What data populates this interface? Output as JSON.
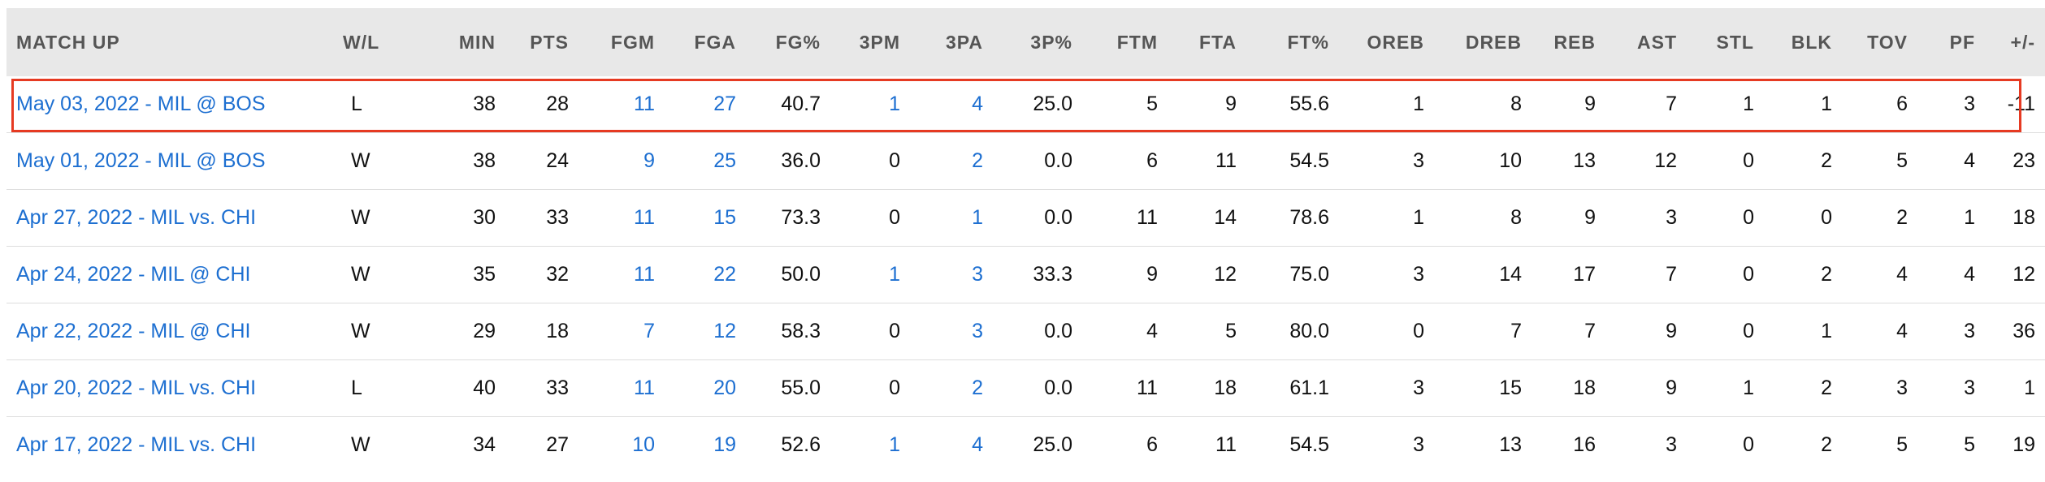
{
  "columns": [
    "MATCH UP",
    "W/L",
    "MIN",
    "PTS",
    "FGM",
    "FGA",
    "FG%",
    "3PM",
    "3PA",
    "3P%",
    "FTM",
    "FTA",
    "FT%",
    "OREB",
    "DREB",
    "REB",
    "AST",
    "STL",
    "BLK",
    "TOV",
    "PF",
    "+/-"
  ],
  "rows": [
    {
      "matchup": "May 03, 2022 - MIL @ BOS",
      "wl": "L",
      "min": "38",
      "pts": "28",
      "fgm": "11",
      "fga": "27",
      "fgpct": "40.7",
      "tpm": "1",
      "tpa": "4",
      "tppct": "25.0",
      "ftm": "5",
      "fta": "9",
      "ftpct": "55.6",
      "oreb": "1",
      "dreb": "8",
      "reb": "9",
      "ast": "7",
      "stl": "1",
      "blk": "1",
      "tov": "6",
      "pf": "3",
      "pm": "-11"
    },
    {
      "matchup": "May 01, 2022 - MIL @ BOS",
      "wl": "W",
      "min": "38",
      "pts": "24",
      "fgm": "9",
      "fga": "25",
      "fgpct": "36.0",
      "tpm": "0",
      "tpa": "2",
      "tppct": "0.0",
      "ftm": "6",
      "fta": "11",
      "ftpct": "54.5",
      "oreb": "3",
      "dreb": "10",
      "reb": "13",
      "ast": "12",
      "stl": "0",
      "blk": "2",
      "tov": "5",
      "pf": "4",
      "pm": "23"
    },
    {
      "matchup": "Apr 27, 2022 - MIL vs. CHI",
      "wl": "W",
      "min": "30",
      "pts": "33",
      "fgm": "11",
      "fga": "15",
      "fgpct": "73.3",
      "tpm": "0",
      "tpa": "1",
      "tppct": "0.0",
      "ftm": "11",
      "fta": "14",
      "ftpct": "78.6",
      "oreb": "1",
      "dreb": "8",
      "reb": "9",
      "ast": "3",
      "stl": "0",
      "blk": "0",
      "tov": "2",
      "pf": "1",
      "pm": "18"
    },
    {
      "matchup": "Apr 24, 2022 - MIL @ CHI",
      "wl": "W",
      "min": "35",
      "pts": "32",
      "fgm": "11",
      "fga": "22",
      "fgpct": "50.0",
      "tpm": "1",
      "tpa": "3",
      "tppct": "33.3",
      "ftm": "9",
      "fta": "12",
      "ftpct": "75.0",
      "oreb": "3",
      "dreb": "14",
      "reb": "17",
      "ast": "7",
      "stl": "0",
      "blk": "2",
      "tov": "4",
      "pf": "4",
      "pm": "12"
    },
    {
      "matchup": "Apr 22, 2022 - MIL @ CHI",
      "wl": "W",
      "min": "29",
      "pts": "18",
      "fgm": "7",
      "fga": "12",
      "fgpct": "58.3",
      "tpm": "0",
      "tpa": "3",
      "tppct": "0.0",
      "ftm": "4",
      "fta": "5",
      "ftpct": "80.0",
      "oreb": "0",
      "dreb": "7",
      "reb": "7",
      "ast": "9",
      "stl": "0",
      "blk": "1",
      "tov": "4",
      "pf": "3",
      "pm": "36"
    },
    {
      "matchup": "Apr 20, 2022 - MIL vs. CHI",
      "wl": "L",
      "min": "40",
      "pts": "33",
      "fgm": "11",
      "fga": "20",
      "fgpct": "55.0",
      "tpm": "0",
      "tpa": "2",
      "tppct": "0.0",
      "ftm": "11",
      "fta": "18",
      "ftpct": "61.1",
      "oreb": "3",
      "dreb": "15",
      "reb": "18",
      "ast": "9",
      "stl": "1",
      "blk": "2",
      "tov": "3",
      "pf": "3",
      "pm": "1"
    },
    {
      "matchup": "Apr 17, 2022 - MIL vs. CHI",
      "wl": "W",
      "min": "34",
      "pts": "27",
      "fgm": "10",
      "fga": "19",
      "fgpct": "52.6",
      "tpm": "1",
      "tpa": "4",
      "tppct": "25.0",
      "ftm": "6",
      "fta": "11",
      "ftpct": "54.5",
      "oreb": "3",
      "dreb": "13",
      "reb": "16",
      "ast": "3",
      "stl": "0",
      "blk": "2",
      "tov": "5",
      "pf": "5",
      "pm": "19"
    }
  ],
  "linked_columns": {
    "fgm": true,
    "fga": true,
    "tpm": [
      true,
      false,
      false,
      true,
      false,
      false,
      true
    ],
    "tpa": true
  },
  "highlighted_row": 0,
  "colors": {
    "link": "#1d6fd1",
    "highlight_border": "#e63a22",
    "header_bg": "#e8e8e8",
    "header_text": "#555555"
  }
}
